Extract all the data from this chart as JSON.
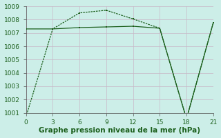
{
  "line1_x": [
    0,
    3,
    6,
    9,
    12,
    15,
    18,
    21
  ],
  "line1_y": [
    1000.7,
    1007.3,
    1008.5,
    1008.7,
    1008.05,
    1007.35,
    1000.55,
    1007.75
  ],
  "line2_x": [
    0,
    3,
    6,
    9,
    12,
    15,
    18,
    21
  ],
  "line2_y": [
    1007.3,
    1007.3,
    1007.4,
    1007.45,
    1007.5,
    1007.35,
    1000.55,
    1007.75
  ],
  "line_color": "#1a5e1a",
  "bg_color": "#cceee8",
  "grid_color_h": "#c8b8c8",
  "grid_color_v": "#c8b8c8",
  "xlabel": "Graphe pression niveau de la mer (hPa)",
  "xlim": [
    0,
    21
  ],
  "ylim": [
    1001,
    1009
  ],
  "xticks": [
    0,
    3,
    6,
    9,
    12,
    15,
    18,
    21
  ],
  "yticks": [
    1001,
    1002,
    1003,
    1004,
    1005,
    1006,
    1007,
    1008,
    1009
  ],
  "xlabel_fontsize": 7.5,
  "tick_fontsize": 6.5,
  "marker_size": 2.5,
  "linewidth": 0.9
}
